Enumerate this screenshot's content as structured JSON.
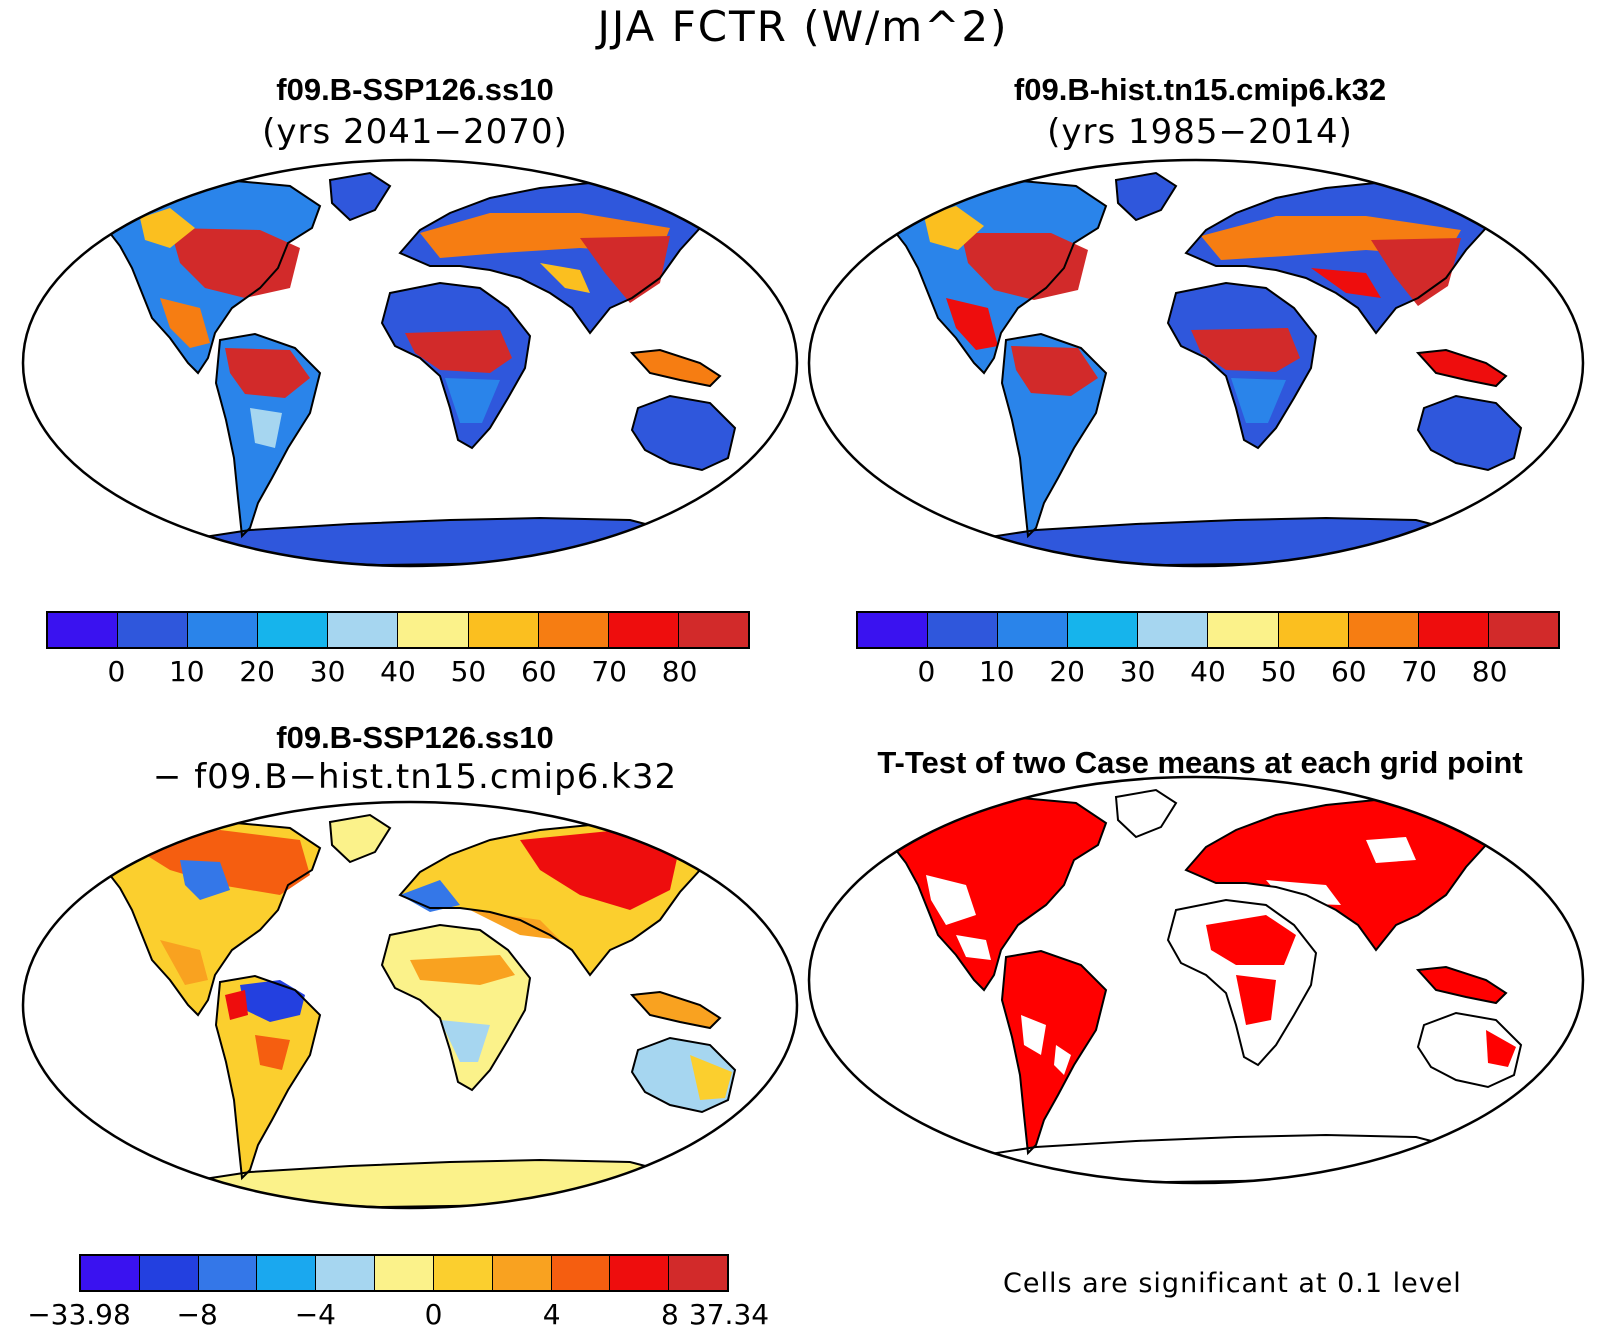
{
  "figure": {
    "title": "JJA FCTR (W/m^2)"
  },
  "panels": {
    "top_left": {
      "title": "f09.B-SSP126.ss10",
      "subtitle": "(yrs 2041−2070)"
    },
    "top_right": {
      "title": "f09.B-hist.tn15.cmip6.k32",
      "subtitle": "(yrs 1985−2014)"
    },
    "bottom_left": {
      "title": "f09.B-SSP126.ss10",
      "subtitle": "− f09.B−hist.tn15.cmip6.k32"
    },
    "bottom_right": {
      "title": "T-Test of two Case means at each grid point",
      "note": "Cells are significant at 0.1 level"
    }
  },
  "colorbar_abs": {
    "colors": [
      "#3a12f0",
      "#2f57dc",
      "#2a84ea",
      "#16b4ec",
      "#a6d6f0",
      "#fbf28a",
      "#fbbf1f",
      "#f67d12",
      "#ee0d0d",
      "#d22a2a"
    ],
    "labels": [
      "0",
      "10",
      "20",
      "30",
      "40",
      "50",
      "60",
      "70",
      "80"
    ]
  },
  "colorbar_diff": {
    "colors": [
      "#3a12f0",
      "#2340e0",
      "#3477e8",
      "#1aa8ef",
      "#a6d6f0",
      "#fbf28a",
      "#fbcf2e",
      "#f9a220",
      "#f55e10",
      "#ee0d0d",
      "#d22a2a"
    ],
    "labels": [
      "−33.98",
      "−8",
      "−4",
      "0",
      "4",
      "8",
      "37.34"
    ]
  },
  "legend_colors": {
    "significant": "#ff0000"
  }
}
